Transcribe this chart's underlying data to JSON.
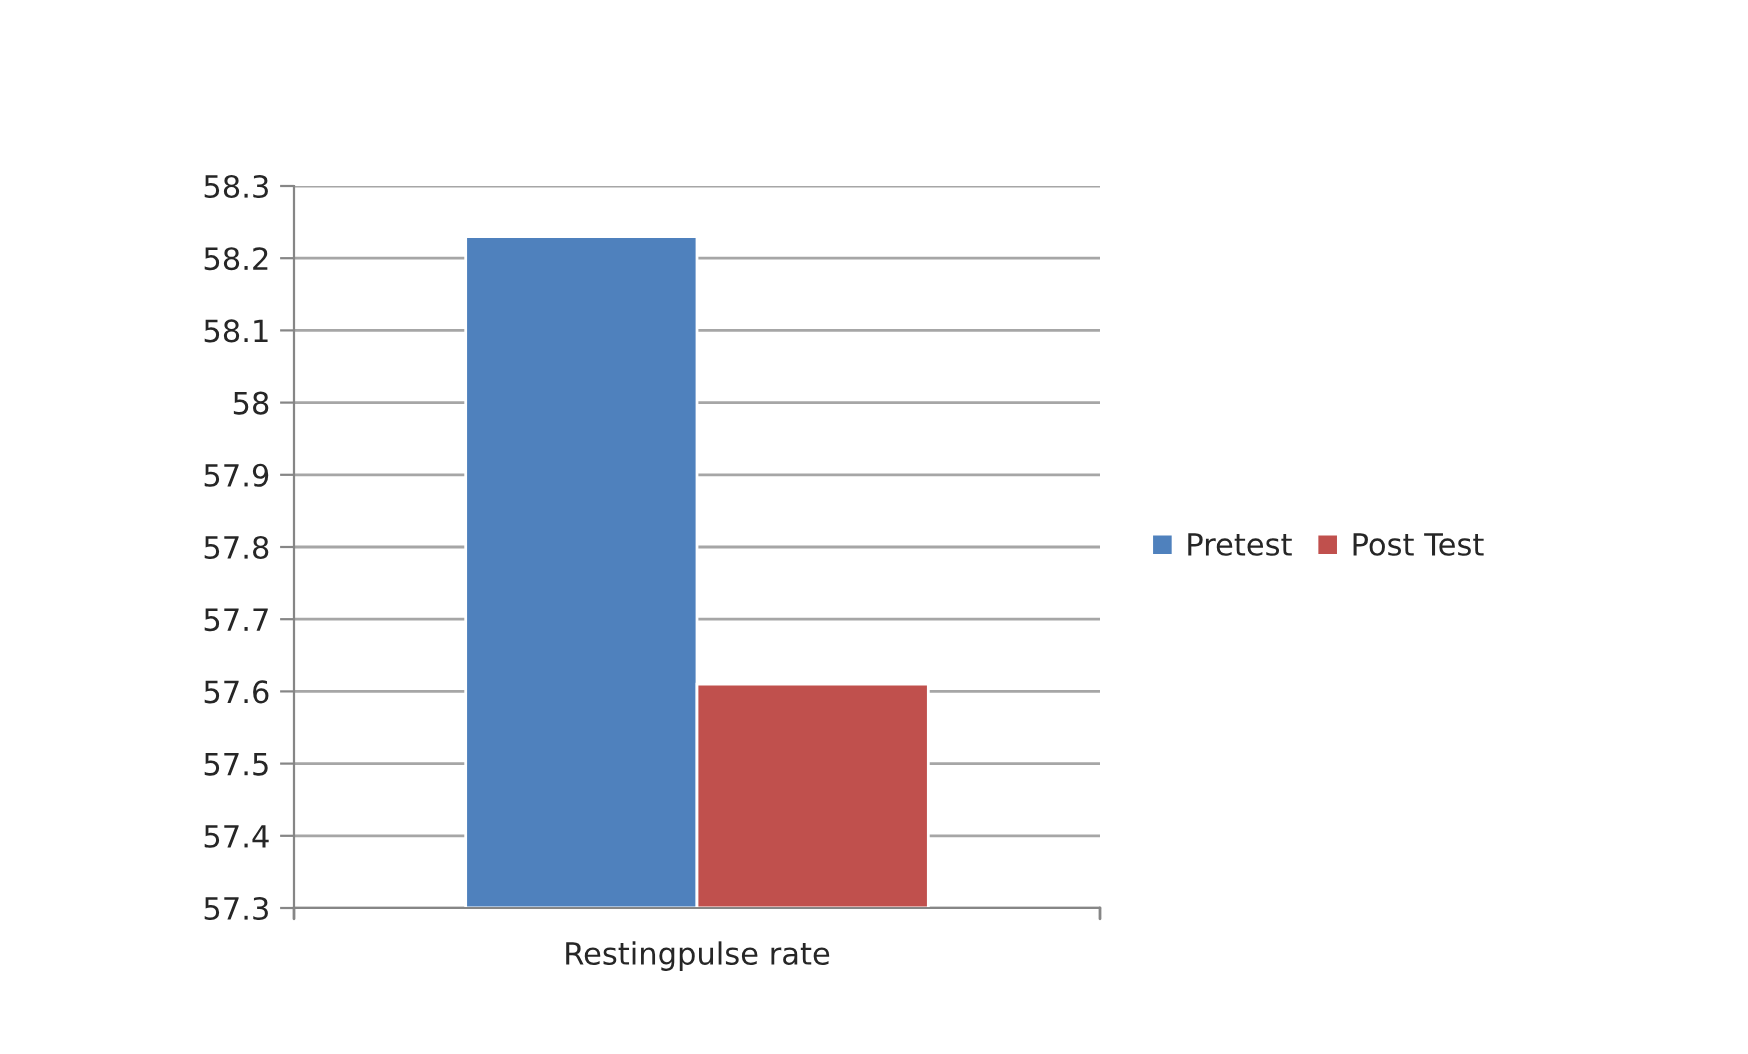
{
  "chart_data": {
    "type": "bar",
    "categories": [
      "Restingpulse rate"
    ],
    "series": [
      {
        "name": "Pretest",
        "color": "#4f81bd",
        "values": [
          58.23
        ]
      },
      {
        "name": "Post Test",
        "color": "#c0504d",
        "values": [
          57.61
        ]
      }
    ],
    "ylim": [
      57.3,
      58.3
    ],
    "yticks": [
      57.3,
      57.4,
      57.5,
      57.6,
      57.7,
      57.8,
      57.9,
      58,
      58.1,
      58.2,
      58.3
    ],
    "grid": "y",
    "legend": "right"
  }
}
